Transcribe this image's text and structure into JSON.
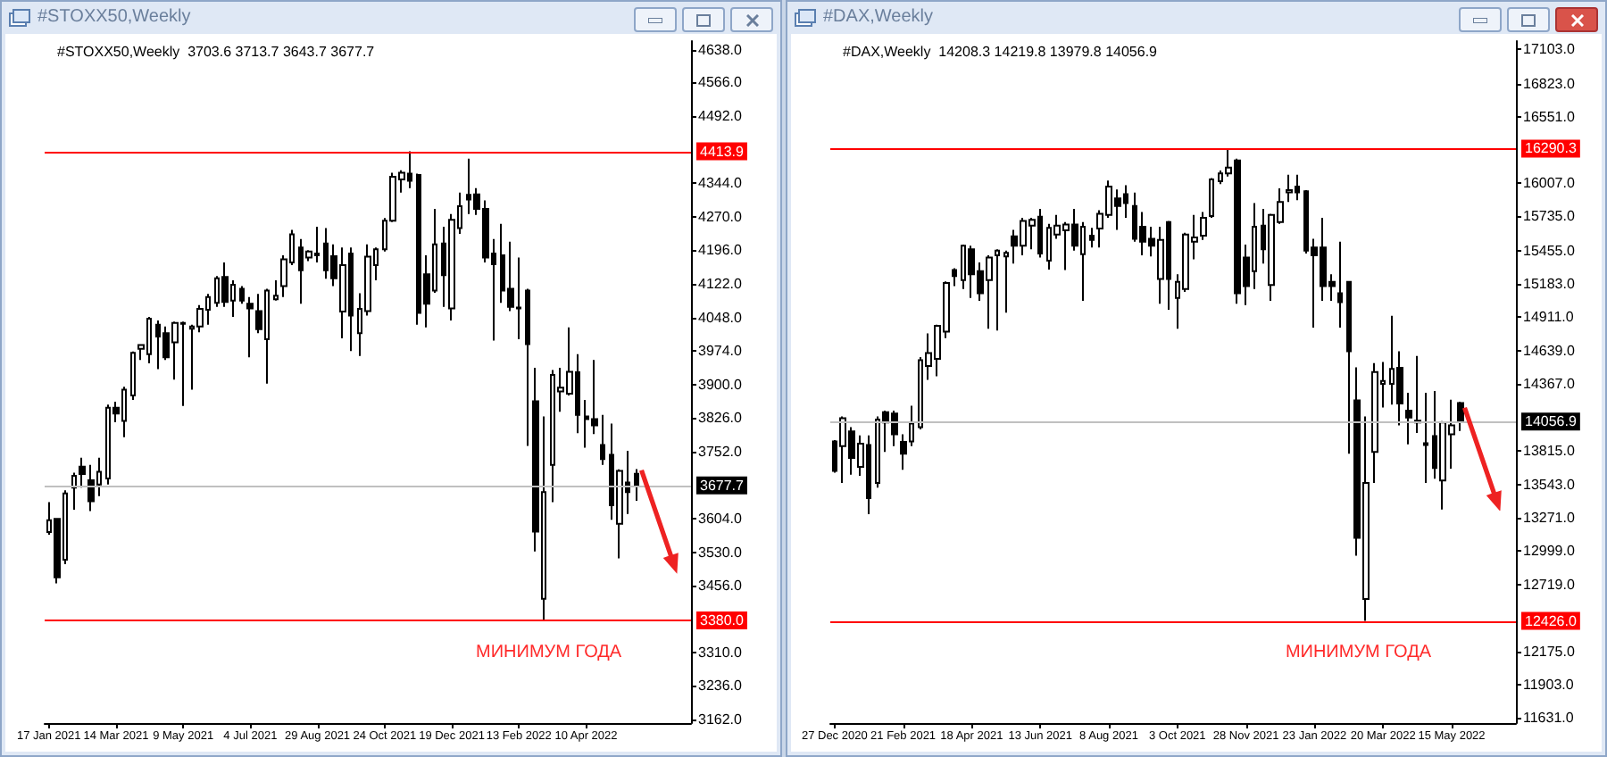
{
  "chart_data": [
    {
      "type": "candlestick",
      "title": "#STOXX50,Weekly",
      "subtitle": "#STOXX50,Weekly  3703.6 3713.7 3643.7 3677.7",
      "color": "#000000",
      "categories": [
        "17 Jan 2021",
        null,
        null,
        null,
        null,
        null,
        null,
        null,
        "14 Mar 2021",
        null,
        null,
        null,
        null,
        null,
        null,
        null,
        "9 May 2021",
        null,
        null,
        null,
        null,
        null,
        null,
        null,
        "4 Jul 2021",
        null,
        null,
        null,
        null,
        null,
        null,
        null,
        "29 Aug 2021",
        null,
        null,
        null,
        null,
        null,
        null,
        null,
        "24 Oct 2021",
        null,
        null,
        null,
        null,
        null,
        null,
        null,
        "19 Dec 2021",
        null,
        null,
        null,
        null,
        null,
        null,
        null,
        "13 Feb 2022",
        null,
        null,
        null,
        null,
        null,
        null,
        null,
        "10 Apr 2022",
        null,
        null,
        null,
        null,
        null,
        null
      ],
      "ohlc": [
        [
          3575,
          3641,
          3569,
          3601
        ],
        [
          3604,
          3606,
          3462,
          3475
        ],
        [
          3514,
          3667,
          3504,
          3660
        ],
        [
          3673,
          3706,
          3624,
          3699
        ],
        [
          3719,
          3739,
          3673,
          3703
        ],
        [
          3689,
          3723,
          3621,
          3643
        ],
        [
          3680,
          3739,
          3654,
          3708
        ],
        [
          3693,
          3856,
          3680,
          3849
        ],
        [
          3849,
          3862,
          3817,
          3836
        ],
        [
          3820,
          3895,
          3784,
          3889
        ],
        [
          3876,
          3973,
          3866,
          3970
        ],
        [
          3979,
          3989,
          3954,
          3987
        ],
        [
          3967,
          4049,
          3947,
          4045
        ],
        [
          4032,
          4041,
          3934,
          4006
        ],
        [
          4013,
          4028,
          3954,
          3960
        ],
        [
          3993,
          4039,
          3911,
          4036
        ],
        [
          4036,
          4039,
          3853,
          4034
        ],
        [
          4023,
          4032,
          3889,
          4028
        ],
        [
          4028,
          4075,
          4015,
          4067
        ],
        [
          4065,
          4100,
          4032,
          4093
        ],
        [
          4080,
          4139,
          4071,
          4134
        ],
        [
          4137,
          4169,
          4071,
          4082
        ],
        [
          4085,
          4130,
          4049,
          4120
        ],
        [
          4111,
          4117,
          4078,
          4085
        ],
        [
          4078,
          4093,
          3960,
          4068
        ],
        [
          4062,
          4100,
          4013,
          4022
        ],
        [
          4000,
          4111,
          3902,
          4107
        ],
        [
          4088,
          4130,
          4085,
          4096
        ],
        [
          4117,
          4185,
          4093,
          4176
        ],
        [
          4169,
          4241,
          4163,
          4231
        ],
        [
          4202,
          4221,
          4078,
          4152
        ],
        [
          4180,
          4196,
          4172,
          4193
        ],
        [
          4189,
          4248,
          4169,
          4185
        ],
        [
          4211,
          4245,
          4133,
          4152
        ],
        [
          4183,
          4209,
          4117,
          4134
        ],
        [
          4061,
          4202,
          4002,
          4163
        ],
        [
          4189,
          4202,
          3974,
          4052
        ],
        [
          4013,
          4101,
          3963,
          4067
        ],
        [
          4062,
          4209,
          4052,
          4182
        ],
        [
          4163,
          4202,
          4130,
          4198
        ],
        [
          4198,
          4267,
          4193,
          4261
        ],
        [
          4261,
          4367,
          4258,
          4358
        ],
        [
          4352,
          4372,
          4323,
          4367
        ],
        [
          4365,
          4413.9,
          4333,
          4349
        ],
        [
          4362,
          4365,
          4032,
          4058
        ],
        [
          4143,
          4185,
          4026,
          4078
        ],
        [
          4107,
          4287,
          4102,
          4209
        ],
        [
          4211,
          4248,
          4071,
          4141
        ],
        [
          4068,
          4276,
          4041,
          4263
        ],
        [
          4245,
          4323,
          4232,
          4293
        ],
        [
          4318,
          4398,
          4276,
          4308
        ],
        [
          4319,
          4333,
          4274,
          4287
        ],
        [
          4287,
          4306,
          4169,
          4180
        ],
        [
          4189,
          4221,
          3997,
          4165
        ],
        [
          4185,
          4254,
          4080,
          4107
        ],
        [
          4111,
          4215,
          4062,
          4071
        ],
        [
          4070,
          4180,
          4000,
          4068
        ],
        [
          4107,
          4111,
          3765,
          3989
        ],
        [
          3863,
          3937,
          3532,
          3576
        ],
        [
          3428,
          3830,
          3380,
          3663
        ],
        [
          3723,
          3932,
          3641,
          3921
        ],
        [
          3885,
          3937,
          3840,
          3893
        ],
        [
          3880,
          4026,
          3876,
          3928
        ],
        [
          3927,
          3967,
          3793,
          3833
        ],
        [
          3830,
          3866,
          3761,
          3824
        ],
        [
          3824,
          3954,
          3791,
          3810
        ],
        [
          3767,
          3833,
          3723,
          3736
        ],
        [
          3745,
          3814,
          3602,
          3634
        ],
        [
          3593,
          3713,
          3517,
          3710
        ],
        [
          3684,
          3754,
          3615,
          3663
        ],
        [
          3703.6,
          3713.7,
          3643.7,
          3677.7
        ]
      ],
      "ylim": [
        3154,
        4657
      ],
      "yticks": [
        {
          "value": 4638,
          "label": "4638.0"
        },
        {
          "value": 4566,
          "label": "4566.0"
        },
        {
          "value": 4492,
          "label": "4492.0"
        },
        {
          "value": 4344,
          "label": "4344.0"
        },
        {
          "value": 4270,
          "label": "4270.0"
        },
        {
          "value": 4196,
          "label": "4196.0"
        },
        {
          "value": 4122,
          "label": "4122.0"
        },
        {
          "value": 4048,
          "label": "4048.0"
        },
        {
          "value": 3974,
          "label": "3974.0"
        },
        {
          "value": 3900,
          "label": "3900.0"
        },
        {
          "value": 3826,
          "label": "3826.0"
        },
        {
          "value": 3752,
          "label": "3752.0"
        },
        {
          "value": 3604,
          "label": "3604.0"
        },
        {
          "value": 3530,
          "label": "3530.0"
        },
        {
          "value": 3456,
          "label": "3456.0"
        },
        {
          "value": 3310,
          "label": "3310.0"
        },
        {
          "value": 3236,
          "label": "3236.0"
        },
        {
          "value": 3162,
          "label": "3162.0"
        }
      ],
      "ref_lines": [
        {
          "axis": "y",
          "value": 4413.9,
          "label": "4413.9",
          "color": "#ff0000"
        },
        {
          "axis": "y",
          "value": 3380.0,
          "label": "3380.0",
          "color": "#ff0000"
        },
        {
          "axis": "y",
          "value": 3677.7,
          "label": "3677.7",
          "color": "#c0c0c0"
        }
      ],
      "annotations": [
        "МИНИМУМ ГОДА"
      ]
    },
    {
      "type": "candlestick",
      "title": "#DAX,Weekly",
      "subtitle": "#DAX,Weekly  14208.3 14219.8 13979.8 14056.9",
      "color": "#000000",
      "categories": [
        "27 Dec 2020",
        null,
        null,
        null,
        null,
        null,
        null,
        null,
        "21 Feb 2021",
        null,
        null,
        null,
        null,
        null,
        null,
        null,
        "18 Apr 2021",
        null,
        null,
        null,
        null,
        null,
        null,
        null,
        "13 Jun 2021",
        null,
        null,
        null,
        null,
        null,
        null,
        null,
        "8 Aug 2021",
        null,
        null,
        null,
        null,
        null,
        null,
        null,
        "3 Oct 2021",
        null,
        null,
        null,
        null,
        null,
        null,
        null,
        "28 Nov 2021",
        null,
        null,
        null,
        null,
        null,
        null,
        null,
        "23 Jan 2022",
        null,
        null,
        null,
        null,
        null,
        null,
        null,
        "20 Mar 2022",
        null,
        null,
        null,
        null,
        null,
        null,
        null,
        "15 May 2022",
        null
      ],
      "ohlc": [
        [
          13895,
          13905,
          13638,
          13653
        ],
        [
          13856,
          14099,
          13555,
          14084
        ],
        [
          13977,
          14011,
          13623,
          13759
        ],
        [
          13687,
          13944,
          13614,
          13876
        ],
        [
          13866,
          13944,
          13299,
          13430
        ],
        [
          13555,
          14099,
          13517,
          14074
        ],
        [
          14133,
          14147,
          13808,
          14050
        ],
        [
          14123,
          14147,
          13856,
          13953
        ],
        [
          13890,
          13953,
          13662,
          13793
        ],
        [
          13895,
          14186,
          13856,
          14040
        ],
        [
          14011,
          14584,
          13992,
          14559
        ],
        [
          14511,
          14778,
          14399,
          14618
        ],
        [
          14569,
          14850,
          14428,
          14840
        ],
        [
          14792,
          15204,
          14739,
          15190
        ],
        [
          15296,
          15311,
          15165,
          15248
        ],
        [
          15214,
          15505,
          15141,
          15495
        ],
        [
          15466,
          15495,
          15068,
          15262
        ],
        [
          15287,
          15359,
          15044,
          15107
        ],
        [
          15214,
          15418,
          14816,
          15398
        ],
        [
          15418,
          15466,
          14802,
          15456
        ],
        [
          15408,
          15456,
          14947,
          15437
        ],
        [
          15573,
          15626,
          15350,
          15495
        ],
        [
          15495,
          15723,
          15418,
          15699
        ],
        [
          15660,
          15723,
          15466,
          15708
        ],
        [
          15733,
          15796,
          15398,
          15432
        ],
        [
          15374,
          15675,
          15301,
          15641
        ],
        [
          15587,
          15747,
          15553,
          15660
        ],
        [
          15621,
          15689,
          15296,
          15670
        ],
        [
          15670,
          15796,
          15456,
          15495
        ],
        [
          15427,
          15689,
          15044,
          15650
        ],
        [
          15578,
          15641,
          15481,
          15544
        ],
        [
          15636,
          15786,
          15481,
          15757
        ],
        [
          15747,
          16029,
          15723,
          15980
        ],
        [
          15883,
          15956,
          15626,
          15820
        ],
        [
          15917,
          15990,
          15723,
          15844
        ],
        [
          15820,
          15931,
          15529,
          15553
        ],
        [
          15650,
          15772,
          15418,
          15529
        ],
        [
          15553,
          15650,
          15408,
          15495
        ],
        [
          15224,
          15650,
          15020,
          15544
        ],
        [
          15689,
          15699,
          14971,
          15224
        ],
        [
          15068,
          15262,
          14816,
          15199
        ],
        [
          15141,
          15602,
          15117,
          15587
        ],
        [
          15529,
          15747,
          15384,
          15563
        ],
        [
          15578,
          15772,
          15544,
          15723
        ],
        [
          15738,
          16048,
          15723,
          16038
        ],
        [
          16024,
          16111,
          16000,
          16087
        ],
        [
          16087,
          16290.3,
          16062,
          16135
        ],
        [
          16193,
          16208,
          15020,
          15107
        ],
        [
          15398,
          15505,
          15010,
          15165
        ],
        [
          15287,
          15844,
          15141,
          15650
        ],
        [
          15660,
          15796,
          15350,
          15466
        ],
        [
          15175,
          15757,
          15044,
          15747
        ],
        [
          15689,
          15965,
          15675,
          15854
        ],
        [
          15932,
          16077,
          15854,
          15951
        ],
        [
          15980,
          16077,
          15869,
          15932
        ],
        [
          15941,
          15951,
          15432,
          15456
        ],
        [
          15481,
          15553,
          14826,
          15418
        ],
        [
          15481,
          15723,
          15044,
          15165
        ],
        [
          15199,
          15262,
          15044,
          15165
        ],
        [
          15107,
          15529,
          14826,
          15034
        ],
        [
          15199,
          15204,
          13793,
          14632
        ],
        [
          14230,
          14501,
          12959,
          13105
        ],
        [
          12605,
          14099,
          12426,
          13555
        ],
        [
          13808,
          14535,
          13555,
          14462
        ],
        [
          14365,
          14545,
          14171,
          14390
        ],
        [
          14365,
          14923,
          14196,
          14487
        ],
        [
          14496,
          14632,
          14026,
          14205
        ],
        [
          14147,
          14293,
          13871,
          14089
        ],
        [
          14065,
          14593,
          13963,
          14050
        ],
        [
          13880,
          14293,
          13555,
          13866
        ],
        [
          13939,
          14307,
          13590,
          13677
        ],
        [
          13575,
          14060,
          13337,
          14050
        ],
        [
          13953,
          14235,
          13672,
          14026
        ],
        [
          14208.3,
          14219.8,
          13979.8,
          14056.9
        ]
      ],
      "ylim": [
        11590,
        17170
      ],
      "yticks": [
        {
          "value": 17103,
          "label": "17103.0"
        },
        {
          "value": 16823,
          "label": "16823.0"
        },
        {
          "value": 16551,
          "label": "16551.0"
        },
        {
          "value": 16007,
          "label": "16007.0"
        },
        {
          "value": 15735,
          "label": "15735.0"
        },
        {
          "value": 15455,
          "label": "15455.0"
        },
        {
          "value": 15183,
          "label": "15183.0"
        },
        {
          "value": 14911,
          "label": "14911.0"
        },
        {
          "value": 14639,
          "label": "14639.0"
        },
        {
          "value": 14367,
          "label": "14367.0"
        },
        {
          "value": 13815,
          "label": "13815.0"
        },
        {
          "value": 13543,
          "label": "13543.0"
        },
        {
          "value": 13271,
          "label": "13271.0"
        },
        {
          "value": 12999,
          "label": "12999.0"
        },
        {
          "value": 12719,
          "label": "12719.0"
        },
        {
          "value": 12175,
          "label": "12175.0"
        },
        {
          "value": 11903,
          "label": "11903.0"
        },
        {
          "value": 11631,
          "label": "11631.0"
        }
      ],
      "ref_lines": [
        {
          "axis": "y",
          "value": 16290.3,
          "label": "16290.3",
          "color": "#ff0000"
        },
        {
          "axis": "y",
          "value": 12426.0,
          "label": "12426.0",
          "color": "#ff0000"
        },
        {
          "axis": "y",
          "value": 14056.9,
          "label": "14056.9",
          "color": "#c0c0c0"
        }
      ],
      "annotations": [
        "МИНИМУМ ГОДА"
      ]
    }
  ]
}
